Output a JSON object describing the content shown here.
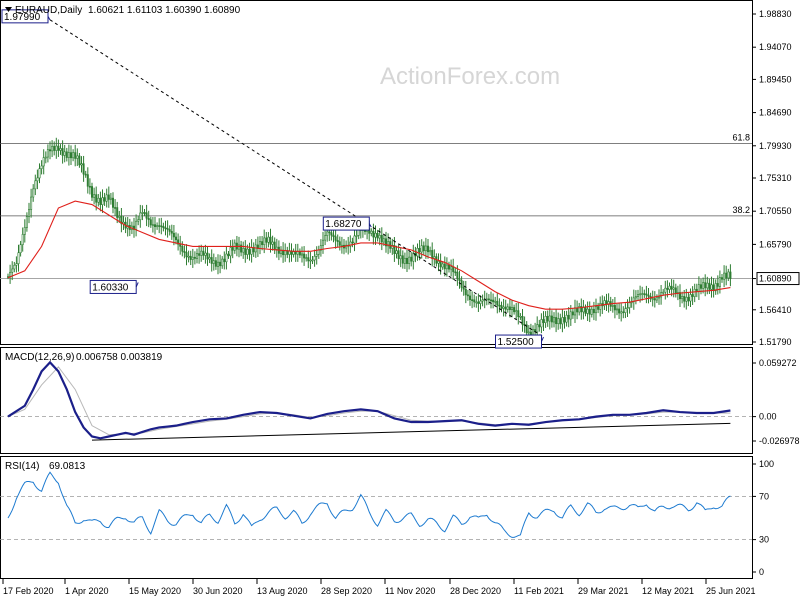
{
  "header": {
    "symbol": "EURAUD,Daily",
    "ohlc": "1.60621 1.61103 1.60390 1.60890"
  },
  "watermark": "ActionForex.com",
  "chart_data": [
    {
      "name": "EURAUD,Daily",
      "type": "candlestick",
      "x_ticks": [
        "17 Feb 2020",
        "1 Apr 2020",
        "15 May 2020",
        "30 Jun 2020",
        "13 Aug 2020",
        "28 Sep 2020",
        "11 Nov 2020",
        "28 Dec 2020",
        "11 Feb 2021",
        "29 Mar 2021",
        "12 May 2021",
        "25 Jun 2021"
      ],
      "y_ticks": [
        "1.98830",
        "1.94070",
        "1.89450",
        "1.84690",
        "1.79930",
        "1.75310",
        "1.70550",
        "1.65790",
        "1.60890",
        "1.56410",
        "1.51790"
      ],
      "ylim": [
        1.5179,
        1.9883
      ],
      "last_price": "1.60890",
      "close_series": {
        "x": [
          0,
          4,
          8,
          12,
          16,
          20,
          24,
          28,
          32,
          36,
          40,
          44,
          48,
          52,
          56,
          60,
          64,
          68,
          72,
          76,
          80,
          84,
          88,
          92,
          96,
          100,
          104,
          108,
          112,
          116,
          120,
          124,
          128,
          132,
          136,
          140,
          144,
          148,
          152,
          156,
          160,
          164,
          168,
          172,
          176,
          180,
          184,
          188,
          192,
          196,
          200,
          204,
          208,
          212,
          216,
          220,
          224,
          228,
          232,
          236,
          240,
          244,
          248,
          252,
          256,
          260,
          264,
          268,
          272,
          276,
          280,
          284,
          288,
          292,
          296,
          300,
          304,
          308,
          312,
          316,
          320,
          324,
          328,
          332,
          336,
          340,
          344
        ],
        "close": [
          1.612,
          1.625,
          1.685,
          1.745,
          1.77,
          1.79,
          1.8,
          1.79,
          1.78,
          1.76,
          1.735,
          1.72,
          1.72,
          1.7,
          1.69,
          1.68,
          1.7,
          1.69,
          1.69,
          1.675,
          1.66,
          1.65,
          1.64,
          1.64,
          1.635,
          1.635,
          1.64,
          1.65,
          1.65,
          1.655,
          1.655,
          1.66,
          1.655,
          1.65,
          1.64,
          1.64,
          1.64,
          1.65,
          1.67,
          1.665,
          1.66,
          1.66,
          1.675,
          1.68,
          1.675,
          1.655,
          1.645,
          1.64,
          1.64,
          1.645,
          1.65,
          1.64,
          1.625,
          1.615,
          1.6,
          1.585,
          1.57,
          1.575,
          1.58,
          1.57,
          1.56,
          1.55,
          1.535,
          1.54,
          1.545,
          1.55,
          1.555,
          1.555,
          1.56,
          1.565,
          1.57,
          1.57,
          1.565,
          1.565,
          1.575,
          1.58,
          1.585,
          1.585,
          1.59,
          1.59,
          1.585,
          1.585,
          1.59,
          1.595,
          1.6,
          1.615,
          1.6089
        ]
      },
      "moving_average": {
        "color": "#e0201b",
        "x": [
          0,
          8,
          16,
          24,
          32,
          40,
          48,
          56,
          64,
          72,
          80,
          88,
          96,
          104,
          112,
          120,
          128,
          136,
          144,
          152,
          160,
          168,
          176,
          184,
          192,
          200,
          208,
          216,
          224,
          232,
          240,
          248,
          256,
          264,
          272,
          280,
          288,
          296,
          304,
          312,
          320,
          328,
          336,
          344
        ],
        "y": [
          1.61,
          1.62,
          1.655,
          1.71,
          1.72,
          1.715,
          1.7,
          1.685,
          1.675,
          1.665,
          1.66,
          1.655,
          1.655,
          1.655,
          1.655,
          1.652,
          1.65,
          1.648,
          1.648,
          1.652,
          1.655,
          1.66,
          1.66,
          1.655,
          1.65,
          1.64,
          1.632,
          1.62,
          1.605,
          1.59,
          1.578,
          1.57,
          1.565,
          1.565,
          1.567,
          1.57,
          1.573,
          1.575,
          1.58,
          1.585,
          1.588,
          1.59,
          1.592,
          1.596
        ]
      },
      "levels": [
        {
          "price": 1.8026,
          "label": "61.8"
        },
        {
          "price": 1.6988,
          "label": "38.2"
        },
        {
          "price": 1.6089,
          "label": ""
        }
      ],
      "trendline": {
        "from": [
          20,
          1.9799
        ],
        "to": [
          255,
          1.525
        ]
      },
      "annotations": [
        {
          "label": "1.97990",
          "x": 20,
          "price": 1.9799,
          "position": "left"
        },
        {
          "label": "1.68270",
          "x": 173,
          "price": 1.6827,
          "position": "left"
        },
        {
          "label": "1.60330",
          "x": 62,
          "price": 1.6033,
          "position": "left-below"
        },
        {
          "label": "1.52500",
          "x": 255,
          "price": 1.525,
          "position": "left-below"
        }
      ]
    },
    {
      "name": "MACD(12,26,9)",
      "type": "line",
      "header_values": "0.006758 0.003819",
      "y_ticks": [
        "0.059272",
        "0.00",
        "-0.026978"
      ],
      "ylim": [
        -0.026978,
        0.059272
      ],
      "macd": {
        "color": "#1b1f8a",
        "x": [
          0,
          8,
          12,
          16,
          20,
          24,
          28,
          32,
          36,
          40,
          44,
          48,
          52,
          56,
          60,
          64,
          68,
          72,
          76,
          80,
          84,
          88,
          96,
          104,
          112,
          120,
          128,
          136,
          144,
          152,
          160,
          168,
          176,
          184,
          192,
          200,
          208,
          216,
          224,
          232,
          240,
          248,
          256,
          264,
          272,
          280,
          288,
          296,
          304,
          312,
          320,
          328,
          336,
          344
        ],
        "y": [
          0,
          0.012,
          0.03,
          0.05,
          0.06,
          0.05,
          0.03,
          0.005,
          -0.012,
          -0.022,
          -0.024,
          -0.022,
          -0.02,
          -0.018,
          -0.02,
          -0.017,
          -0.014,
          -0.012,
          -0.011,
          -0.01,
          -0.008,
          -0.006,
          -0.003,
          -0.002,
          0.002,
          0.005,
          0.004,
          0.001,
          -0.002,
          0.003,
          0.006,
          0.008,
          0.006,
          -0.002,
          -0.006,
          -0.006,
          -0.005,
          -0.004,
          -0.008,
          -0.01,
          -0.008,
          -0.009,
          -0.006,
          -0.004,
          -0.003,
          0,
          0.002,
          0.002,
          0.004,
          0.007,
          0.005,
          0.004,
          0.004,
          0.006758
        ]
      },
      "signal": {
        "color": "#b8b8b8",
        "x": [
          0,
          8,
          16,
          24,
          32,
          40,
          48,
          56,
          64,
          72,
          80,
          88,
          96,
          104,
          112,
          120,
          128,
          136,
          144,
          152,
          160,
          168,
          176,
          184,
          192,
          200,
          208,
          216,
          224,
          232,
          240,
          248,
          256,
          264,
          272,
          280,
          288,
          296,
          304,
          312,
          320,
          328,
          336,
          344
        ],
        "y": [
          0,
          0.008,
          0.035,
          0.055,
          0.03,
          -0.01,
          -0.02,
          -0.019,
          -0.018,
          -0.014,
          -0.011,
          -0.008,
          -0.005,
          -0.003,
          0,
          0.003,
          0.004,
          0.002,
          -0.001,
          0.001,
          0.004,
          0.006,
          0.006,
          0.001,
          -0.004,
          -0.005,
          -0.005,
          -0.005,
          -0.007,
          -0.009,
          -0.008,
          -0.008,
          -0.006,
          -0.004,
          -0.003,
          -0.001,
          0.001,
          0.002,
          0.003,
          0.005,
          0.005,
          0.004,
          0.004,
          0.003819
        ]
      },
      "support_line": {
        "from": [
          40,
          -0.026
        ],
        "to": [
          344,
          -0.0075
        ]
      }
    },
    {
      "name": "RSI(14)",
      "type": "line",
      "header_values": "69.0813",
      "y_ticks": [
        "100",
        "70",
        "30",
        "0"
      ],
      "ylim": [
        0,
        100
      ],
      "levels": [
        70,
        30
      ],
      "rsi": {
        "color": "#1e7bd0",
        "x": [
          0,
          4,
          8,
          12,
          16,
          20,
          24,
          28,
          32,
          36,
          40,
          44,
          48,
          52,
          56,
          60,
          64,
          68,
          72,
          76,
          80,
          84,
          88,
          92,
          96,
          100,
          104,
          108,
          112,
          116,
          120,
          124,
          128,
          132,
          136,
          140,
          144,
          148,
          152,
          156,
          160,
          164,
          168,
          172,
          176,
          180,
          184,
          188,
          192,
          196,
          200,
          204,
          208,
          212,
          216,
          220,
          224,
          228,
          232,
          236,
          240,
          244,
          248,
          252,
          256,
          260,
          264,
          268,
          272,
          276,
          280,
          284,
          288,
          292,
          296,
          300,
          304,
          308,
          312,
          316,
          320,
          324,
          328,
          332,
          336,
          340,
          344
        ],
        "y": [
          50,
          70,
          80,
          85,
          75,
          90,
          85,
          60,
          45,
          50,
          45,
          48,
          42,
          48,
          52,
          45,
          50,
          38,
          55,
          48,
          45,
          50,
          55,
          45,
          52,
          48,
          60,
          45,
          55,
          40,
          50,
          55,
          58,
          52,
          55,
          45,
          55,
          60,
          65,
          50,
          55,
          60,
          70,
          55,
          45,
          55,
          48,
          50,
          52,
          45,
          48,
          45,
          40,
          50,
          45,
          52,
          48,
          55,
          45,
          38,
          35,
          32,
          55,
          52,
          55,
          58,
          50,
          60,
          55,
          62,
          55,
          60,
          58,
          60,
          62,
          58,
          65,
          55,
          60,
          62,
          60,
          58,
          65,
          55,
          62,
          60,
          69.08
        ]
      }
    }
  ]
}
